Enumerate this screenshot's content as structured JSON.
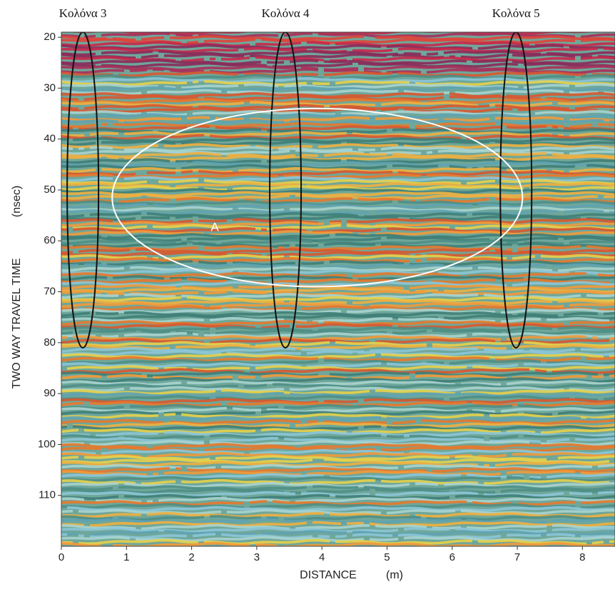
{
  "chart_data": {
    "type": "radargram",
    "xlabel": "DISTANCE",
    "xunit": "(m)",
    "ylabel": "TWO WAY TRAVEL TIME",
    "yunit": "(nsec)",
    "xlim": [
      0,
      8.5
    ],
    "xticks": [
      0,
      1,
      2,
      3,
      4,
      5,
      6,
      7,
      8
    ],
    "ylim": [
      19,
      120
    ],
    "yticks": [
      20,
      30,
      40,
      50,
      60,
      70,
      80,
      90,
      100,
      110
    ],
    "columns": [
      {
        "label": "Κολόνα 3",
        "x": 0.33,
        "ylim": [
          19,
          81
        ]
      },
      {
        "label": "Κολόνα 4",
        "x": 3.44,
        "ylim": [
          19,
          81
        ]
      },
      {
        "label": "Κολόνα 5",
        "x": 6.98,
        "ylim": [
          19,
          81
        ]
      }
    ],
    "zone": {
      "label": "A",
      "xlim": [
        0.78,
        7.08
      ],
      "ylim": [
        34,
        69
      ]
    }
  }
}
